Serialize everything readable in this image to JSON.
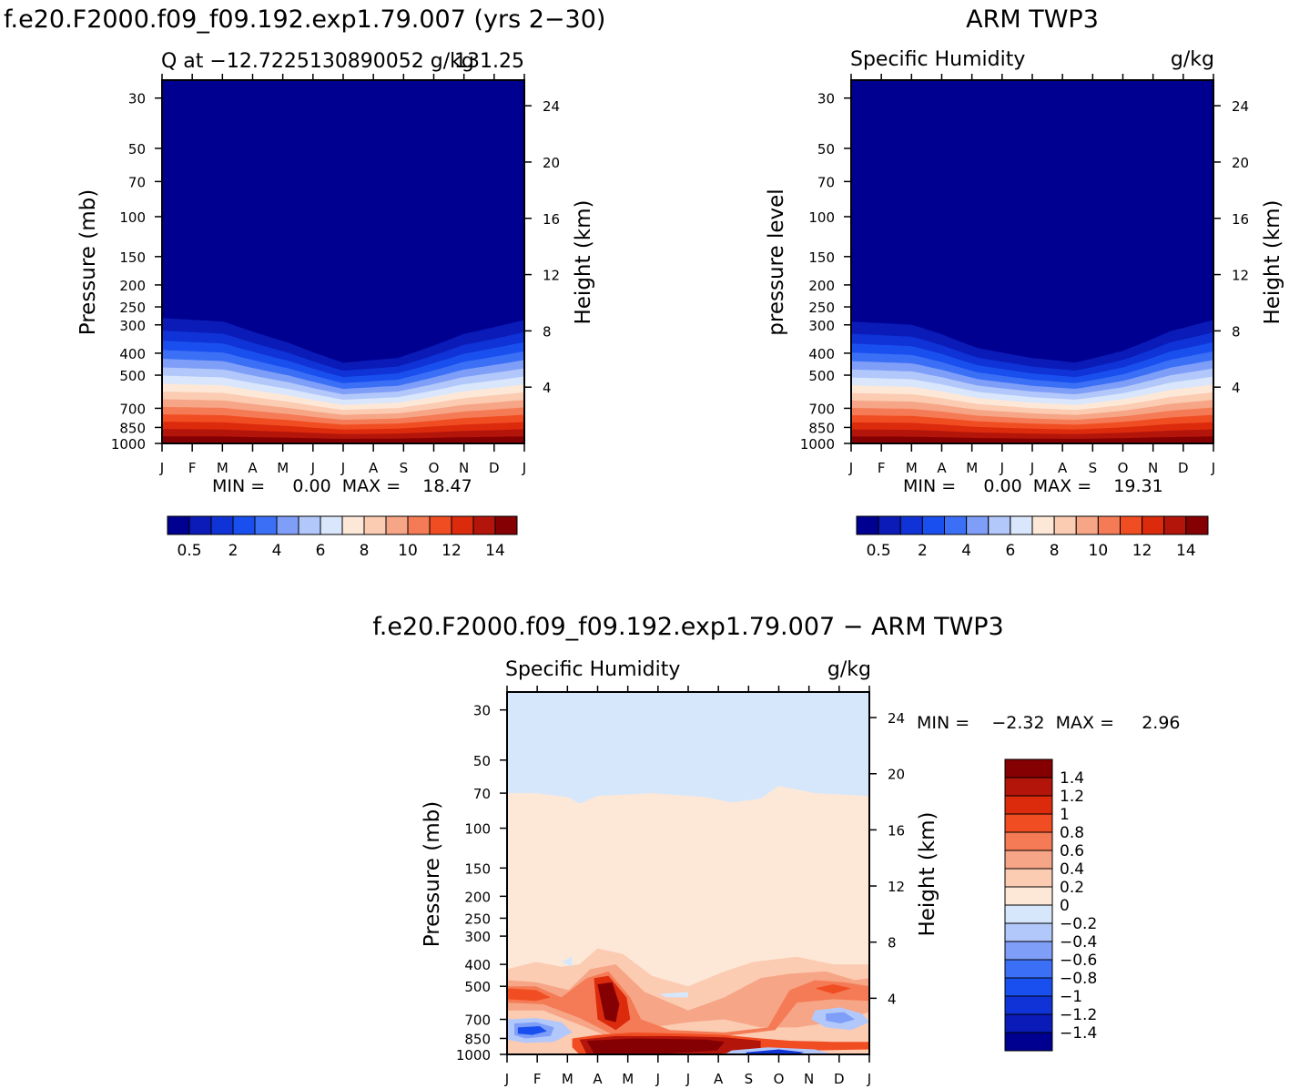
{
  "pressure_ticks": [
    30,
    50,
    70,
    100,
    150,
    200,
    250,
    300,
    400,
    500,
    700,
    850,
    1000
  ],
  "height_ticks": [
    24,
    20,
    16,
    12,
    8,
    4
  ],
  "months": [
    "J",
    "F",
    "M",
    "A",
    "M",
    "J",
    "J",
    "A",
    "S",
    "O",
    "N",
    "D",
    "J"
  ],
  "q_palette": [
    "#000090",
    "#0a1bb8",
    "#0f33d6",
    "#1a4fef",
    "#3b70f6",
    "#7f9ef8",
    "#b3c8fa",
    "#d9e6fb",
    "#fde8d8",
    "#fbcbb2",
    "#f6a586",
    "#f47b55",
    "#f14d22",
    "#dc2a0c",
    "#b3150a",
    "#850003"
  ],
  "diff_palette": [
    "#000090",
    "#0a1bb8",
    "#0f33d6",
    "#1a4fef",
    "#3b70f6",
    "#7f9ef8",
    "#b3c8fa",
    "#d6e7fb",
    "#fde8d8",
    "#fbcbb2",
    "#f6a586",
    "#f47b55",
    "#f14d22",
    "#dc2a0c",
    "#b3150a",
    "#850003"
  ],
  "panels": [
    {
      "main_title": "f.e20.F2000.f09_f09.192.exp1.79.007 (yrs 2−30)",
      "left_sub": "Q at −12.7225130890052 g/kg",
      "right_sub": "131.25",
      "ylabel": "Pressure (mb)",
      "ylabel_right": "Height (km)",
      "min_max": "MIN =     0.00  MAX =    18.47",
      "cbar_labels": [
        "0.5",
        "2",
        "4",
        "6",
        "8",
        "10",
        "12",
        "14"
      ]
    },
    {
      "main_title": "ARM TWP3",
      "left_sub": "Specific Humidity",
      "right_sub": "g/kg",
      "ylabel": "pressure level",
      "ylabel_right": "Height (km)",
      "min_max": "MIN =     0.00  MAX =    19.31",
      "cbar_labels": [
        "0.5",
        "2",
        "4",
        "6",
        "8",
        "10",
        "12",
        "14"
      ]
    },
    {
      "main_title": "f.e20.F2000.f09_f09.192.exp1.79.007 − ARM TWP3",
      "left_sub": "Specific Humidity",
      "right_sub": "g/kg",
      "ylabel": "Pressure (mb)",
      "ylabel_right": "Height (km)",
      "min_max": "MIN =    −2.32  MAX =     2.96",
      "cbar_labels": [
        "1.4",
        "1.2",
        "1",
        "0.8",
        "0.6",
        "0.4",
        "0.2",
        "0",
        "−0.2",
        "−0.4",
        "−0.6",
        "−0.8",
        "−1",
        "−1.2",
        "−1.4"
      ]
    }
  ],
  "chart_data": [
    {
      "type": "heatmap",
      "title": "f.e20.F2000.f09_f09.192.exp1.79.007 (yrs 2−30)",
      "variable": "Q at −12.7225130890052 g/kg 131.25",
      "xlabel": "",
      "ylabel": "Pressure (mb)",
      "ylabel_right": "Height (km)",
      "x": [
        "J",
        "F",
        "M",
        "A",
        "M",
        "J",
        "J",
        "A",
        "S",
        "O",
        "N",
        "D",
        "J"
      ],
      "y_pressure_mb": [
        30,
        50,
        70,
        100,
        150,
        200,
        250,
        300,
        400,
        500,
        700,
        850,
        1000
      ],
      "ylim": [
        1000,
        25
      ],
      "contour_levels": [
        0.5,
        1,
        2,
        3,
        4,
        5,
        6,
        7,
        8,
        9,
        10,
        11,
        12,
        13,
        14
      ],
      "min": 0.0,
      "max": 18.47
    },
    {
      "type": "heatmap",
      "title": "ARM TWP3",
      "variable": "Specific Humidity g/kg",
      "xlabel": "",
      "ylabel": "pressure level",
      "ylabel_right": "Height (km)",
      "x": [
        "J",
        "F",
        "M",
        "A",
        "M",
        "J",
        "J",
        "A",
        "S",
        "O",
        "N",
        "D",
        "J"
      ],
      "y_pressure_mb": [
        30,
        50,
        70,
        100,
        150,
        200,
        250,
        300,
        400,
        500,
        700,
        850,
        1000
      ],
      "ylim": [
        1000,
        25
      ],
      "contour_levels": [
        0.5,
        1,
        2,
        3,
        4,
        5,
        6,
        7,
        8,
        9,
        10,
        11,
        12,
        13,
        14
      ],
      "min": 0.0,
      "max": 19.31
    },
    {
      "type": "heatmap",
      "title": "f.e20.F2000.f09_f09.192.exp1.79.007 − ARM TWP3",
      "variable": "Specific Humidity g/kg",
      "xlabel": "",
      "ylabel": "Pressure (mb)",
      "ylabel_right": "Height (km)",
      "x": [
        "J",
        "F",
        "M",
        "A",
        "M",
        "J",
        "J",
        "A",
        "S",
        "O",
        "N",
        "D",
        "J"
      ],
      "y_pressure_mb": [
        30,
        50,
        70,
        100,
        150,
        200,
        250,
        300,
        400,
        500,
        700,
        850,
        1000
      ],
      "ylim": [
        1000,
        25
      ],
      "contour_levels": [
        -1.4,
        -1.2,
        -1,
        -0.8,
        -0.6,
        -0.4,
        -0.2,
        0,
        0.2,
        0.4,
        0.6,
        0.8,
        1,
        1.2,
        1.4
      ],
      "min": -2.32,
      "max": 2.96
    }
  ]
}
